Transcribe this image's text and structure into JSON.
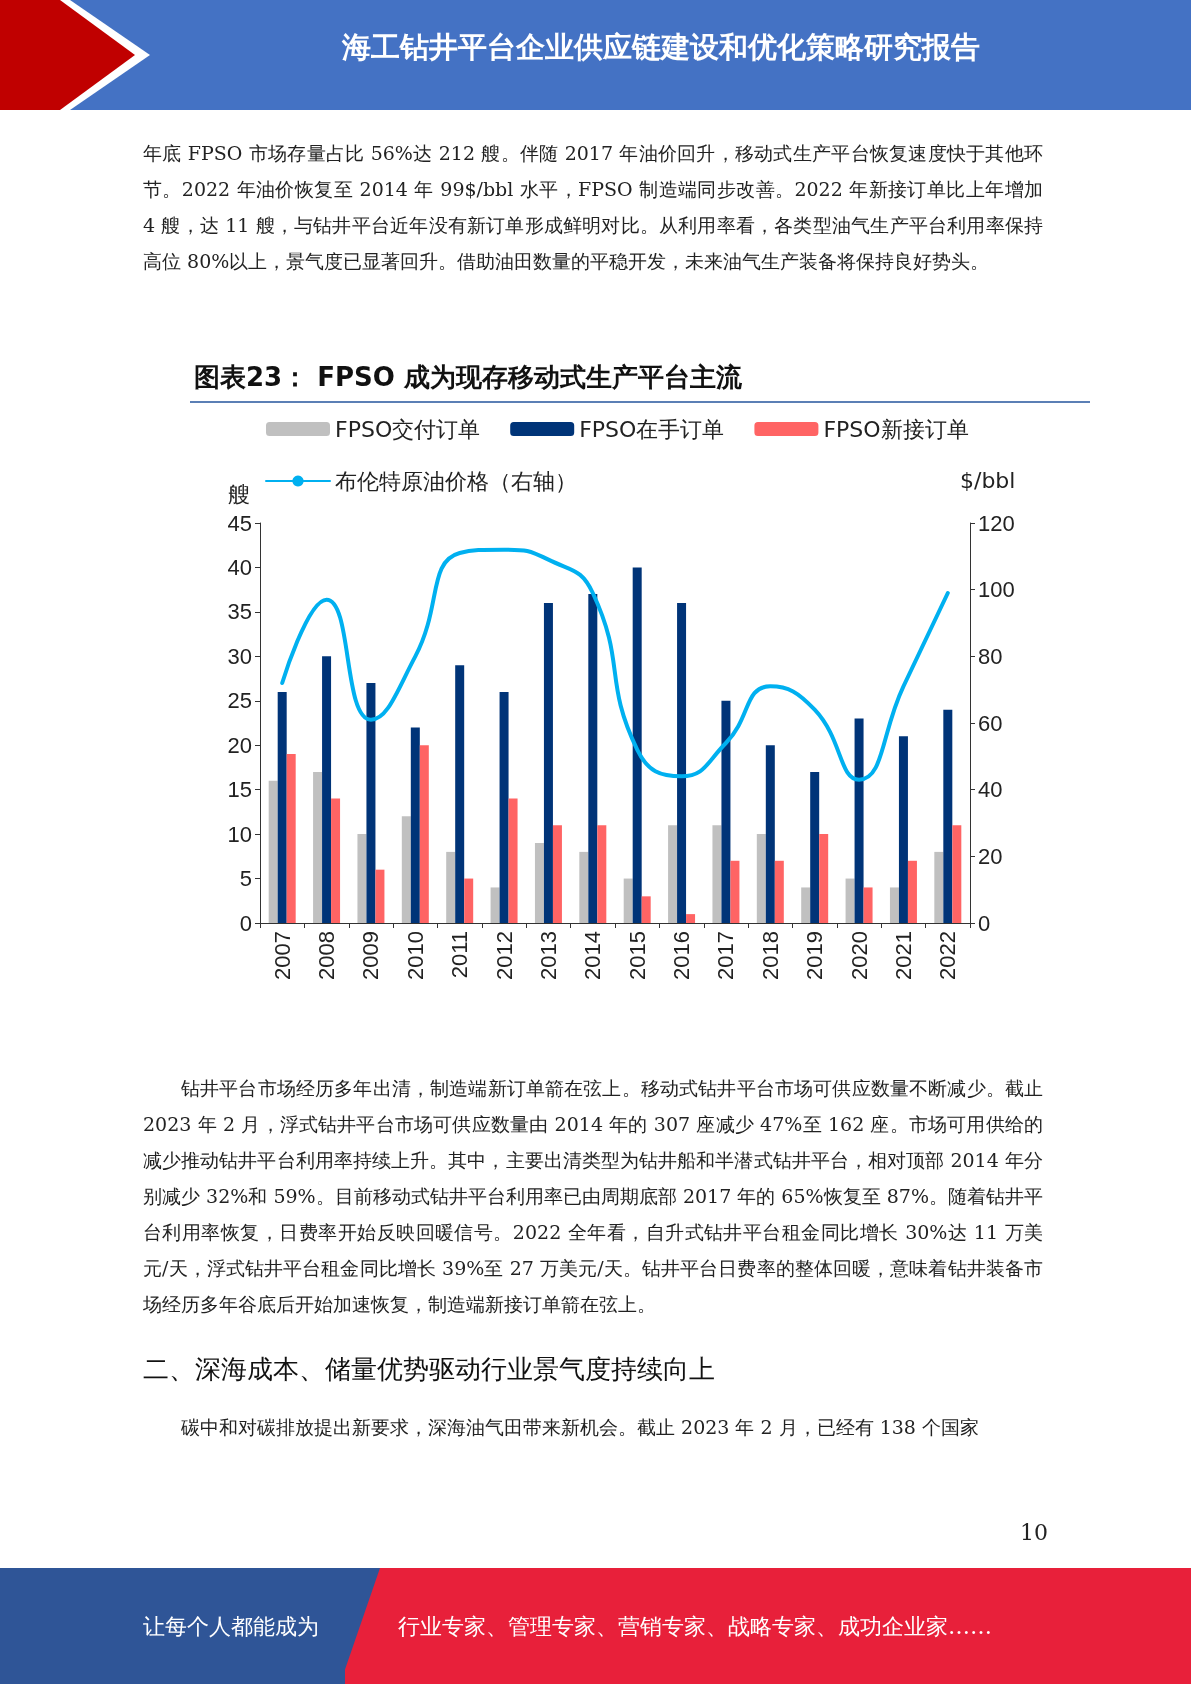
{
  "chart_data": {
    "type": "bar",
    "title": "图表23： FPSO 成为现存移动式生产平台主流",
    "ylabel": "艘",
    "y2label": "$/bbl",
    "categories": [
      "2007",
      "2008",
      "2009",
      "2010",
      "2011",
      "2012",
      "2013",
      "2014",
      "2015",
      "2016",
      "2017",
      "2018",
      "2019",
      "2020",
      "2021",
      "2022"
    ],
    "series": [
      {
        "name": "FPSO交付订单",
        "color": "#c0c0c0",
        "values": [
          16,
          17,
          10,
          12,
          8,
          4,
          9,
          8,
          5,
          11,
          11,
          10,
          4,
          5,
          4,
          8
        ]
      },
      {
        "name": "FPSO在手订单",
        "color": "#003478",
        "values": [
          26,
          30,
          27,
          22,
          29,
          26,
          36,
          37,
          40,
          36,
          25,
          20,
          17,
          23,
          21,
          24
        ]
      },
      {
        "name": "FPSO新接订单",
        "color": "#ff6464",
        "values": [
          19,
          14,
          6,
          20,
          5,
          14,
          11,
          11,
          3,
          1,
          7,
          7,
          10,
          4,
          7,
          11
        ]
      },
      {
        "name": "布伦特原油价格（右轴）",
        "type": "line",
        "axis": "y2",
        "color": "#00b0f0",
        "values": [
          72,
          97,
          61,
          80,
          111,
          112,
          109,
          99,
          52,
          44,
          54,
          71,
          64,
          43,
          71,
          99
        ]
      }
    ],
    "ylim": [
      0,
      45
    ],
    "yticks": [
      0,
      5,
      10,
      15,
      20,
      25,
      30,
      35,
      40,
      45
    ],
    "y2lim": [
      0,
      120
    ],
    "y2ticks": [
      0,
      20,
      40,
      60,
      80,
      100,
      120
    ],
    "grid": false,
    "legend": "top",
    "marker": "none",
    "line_style": "solid",
    "annotations": [
      "海工钻井平台企业供应链建设和优化策略研究报告",
      "年底 FPSO 市场存量占比 56%达 212 艘。伴随 2017 年油价回升，移动式生产平台恢复速度快于其他环节。2022 年油价恢复至 2014 年 99$/bbl 水平，FPSO 制造端同步改善。2022 年新接订单比上年增加 4 艘，达 11 艘，与钻井平台近年没有新订单形成鲜明对比。从利用率看，各类型油气生产平台利用率保持高位 80%以上，景气度已显著回升。借助油田数量的平稳开发，未来油气生产装备将保持良好势头。",
      "钻井平台市场经历多年出清，制造端新订单箭在弦上。移动式钻井平台市场可供应数量不断减少。截止 2023 年 2 月，浮式钻井平台市场可供应数量由 2014 年的 307 座减少 47%至 162 座。市场可用供给的减少推动钻井平台利用率持续上升。其中，主要出清类型为钻井船和半潜式钻井平台，相对顶部 2014 年分别减少 32%和 59%。目前移动式钻井平台利用率已由周期底部 2017 年的 65%恢复至 87%。随着钻井平台利用率恢复，日费率开始反映回暖信号。2022 全年看，自升式钻井平台租金同比增长 30%达 11 万美元/天，浮式钻井平台租金同比增长 39%至 27 万美元/天。钻井平台日费率的整体回暖，意味着钻井装备市场经历多年谷底后开始加速恢复，制造端新接订单箭在弦上。",
      "二、深海成本、储量优势驱动行业景气度持续向上",
      "碳中和对碳排放提出新要求，深海油气田带来新机会。截止 2023 年 2 月，已经有 138 个国家",
      "10",
      "让每个人都能成为",
      "行业专家、管理专家、营销专家、战略专家、成功企业家……"
    ]
  }
}
